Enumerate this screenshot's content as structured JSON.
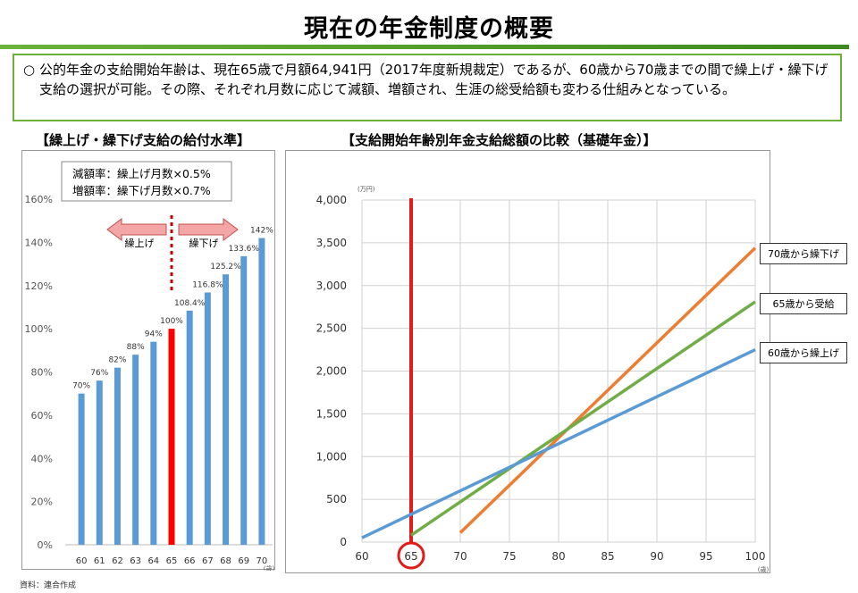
{
  "title": "現在の年金制度の概要",
  "summary": {
    "bullet": "○",
    "text": "公的年金の支給開始年齢は、現在65歳で月額64,941円（2017年度新規裁定）であるが、60歳から70歳までの間で繰上げ・繰下げ支給の選択が可能。その際、それぞれ月数に応じて減額、増額され、生涯の総受給額も変わる仕組みとなっている。"
  },
  "left_title": "【繰上げ・繰下げ支給の給付水準】",
  "right_title": "【支給開始年齢別年金支給総額の比較（基礎年金）】",
  "source_note": "資料：連合作成",
  "rates_box": {
    "line1": "減額率：繰上げ月数×0.5%",
    "line2": "増額率：繰下げ月数×0.7%"
  },
  "arrows": {
    "left": "繰上げ",
    "right": "繰下げ"
  },
  "colors": {
    "bar": "#5b9bd5",
    "bar_highlight": "#ff0000",
    "marker": "#e21b1b",
    "line_60": "#5b9bd5",
    "line_65": "#70ad47",
    "line_70": "#ed7d31",
    "accent_green": "#6cb23a"
  },
  "chart_data": [
    {
      "type": "bar",
      "categories": [
        "60",
        "61",
        "62",
        "63",
        "64",
        "65",
        "66",
        "67",
        "68",
        "69",
        "70"
      ],
      "values": [
        70,
        76,
        82,
        88,
        94,
        100,
        108.4,
        116.8,
        125.2,
        133.6,
        142
      ],
      "data_labels": [
        "70%",
        "76%",
        "82%",
        "88%",
        "94%",
        "100%",
        "108.4%",
        "116.8%",
        "125.2%",
        "133.6%",
        "142%"
      ],
      "highlight_category": "65",
      "ylim": [
        0,
        160
      ],
      "yticks": [
        "0%",
        "20%",
        "40%",
        "60%",
        "80%",
        "100%",
        "120%",
        "140%",
        "160%"
      ],
      "xlabel": "(歳)",
      "grid": false
    },
    {
      "type": "line",
      "x": [
        60,
        65,
        70,
        75,
        80,
        85,
        90,
        95,
        100
      ],
      "xticks": [
        "60",
        "65",
        "70",
        "75",
        "80",
        "85",
        "90",
        "95",
        "100"
      ],
      "yticks": [
        "0",
        "500",
        "1,000",
        "1,500",
        "2,000",
        "2,500",
        "3,000",
        "3,500",
        "4,000"
      ],
      "ylim": [
        0,
        4000
      ],
      "xlim": [
        60,
        100
      ],
      "ylabel": "(万円)",
      "xlabel": "(歳)",
      "grid": true,
      "marker_age": 65,
      "series": [
        {
          "name": "70歳から繰下げ",
          "points": [
            [
              70,
              110
            ],
            [
              100,
              3440
            ]
          ]
        },
        {
          "name": "65歳から受給",
          "points": [
            [
              65,
              80
            ],
            [
              100,
              2810
            ]
          ]
        },
        {
          "name": "60歳から繰上げ",
          "points": [
            [
              60,
              50
            ],
            [
              100,
              2250
            ]
          ]
        }
      ]
    }
  ]
}
